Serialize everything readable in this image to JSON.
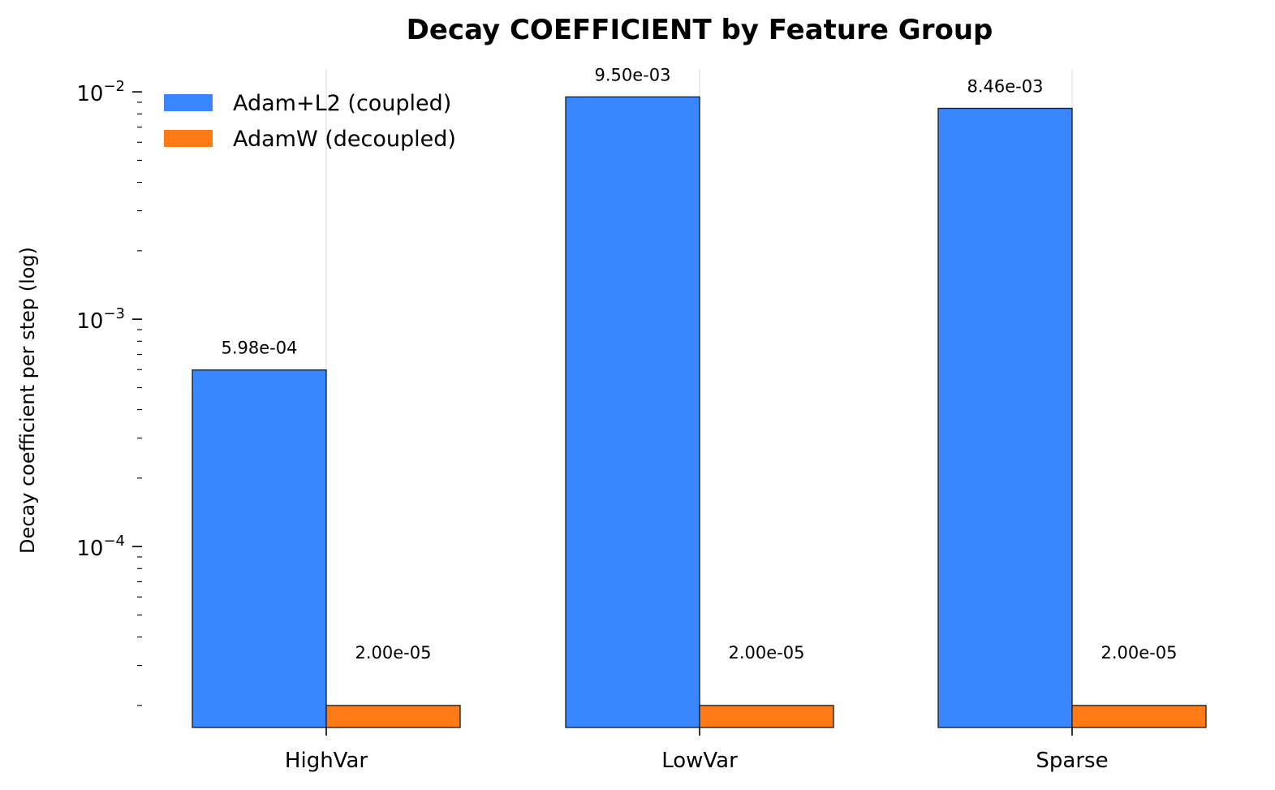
{
  "chart_data": {
    "type": "bar",
    "title": "Decay COEFFICIENT by Feature Group",
    "xlabel": "",
    "ylabel": "Decay coefficient per step (log)",
    "y_scale": "log",
    "ylim": [
      1.6e-05,
      0.0125
    ],
    "y_ticks": [
      {
        "value": 0.01,
        "base": "10",
        "exp": "−2"
      },
      {
        "value": 0.001,
        "base": "10",
        "exp": "−3"
      },
      {
        "value": 0.0001,
        "base": "10",
        "exp": "−4"
      }
    ],
    "categories": [
      "HighVar",
      "LowVar",
      "Sparse"
    ],
    "series": [
      {
        "name": "Adam+L2 (coupled)",
        "color": "#3a86ff",
        "values": [
          0.000598,
          0.0095,
          0.00846
        ],
        "labels": [
          "5.98e-04",
          "9.50e-03",
          "8.46e-03"
        ]
      },
      {
        "name": "AdamW (decoupled)",
        "color": "#ff7a14",
        "values": [
          2e-05,
          2e-05,
          2e-05
        ],
        "labels": [
          "2.00e-05",
          "2.00e-05",
          "2.00e-05"
        ]
      }
    ],
    "grid": "x-major",
    "legend_position": "top-left"
  }
}
